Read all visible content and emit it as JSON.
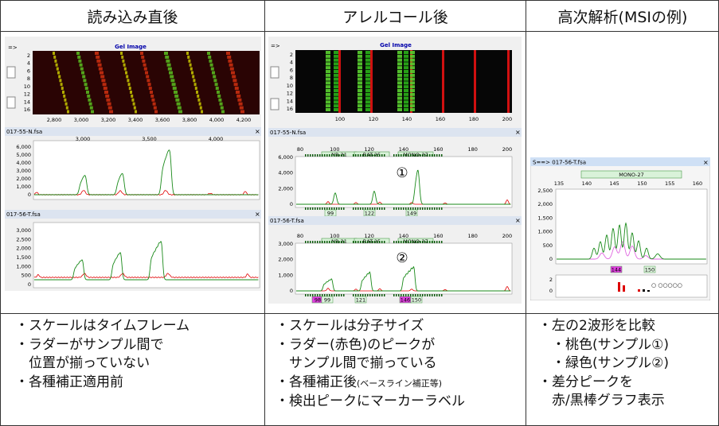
{
  "columns": [
    {
      "title": "読み込み直後",
      "notes": [
        "・スケールはタイムフレーム",
        "・ラダーがサンプル間で",
        "　位置が揃っていない",
        "・各種補正適用前"
      ]
    },
    {
      "title": "アレルコール後",
      "notes": [
        "・スケールは分子サイズ",
        "・ラダー(赤色)のピークが",
        "　サンプル間で揃っている",
        "・各種補正後",
        "・検出ピークにマーカーラベル"
      ],
      "note_small": "(ベースライン補正等)"
    },
    {
      "title": "高次解析(MSIの例)",
      "notes": [
        "・左の2波形を比較",
        "　・桃色(サンプル①)",
        "　・緑色(サンプル②)",
        "・差分ピークを",
        "　赤/黒棒グラフ表示"
      ]
    }
  ],
  "panel1": {
    "gel_title": "Gel Image",
    "arrow": "=>",
    "gel_row_labels": [
      "2",
      "4",
      "6",
      "8",
      "10",
      "12",
      "14",
      "16"
    ],
    "gel_axis": [
      "2,800",
      "3,000",
      "3,200",
      "3,400",
      "3,600",
      "3,800",
      "4,000",
      "4,200"
    ],
    "traces": [
      {
        "name": "017-55-N.fsa",
        "close": "×",
        "top_ticks": [
          "3,000",
          "3,500",
          "4,000"
        ],
        "y_ticks": [
          "6,000",
          "5,000",
          "4,000",
          "3,000",
          "2,000",
          "1,000",
          "0"
        ]
      },
      {
        "name": "017-56-T.fsa",
        "close": "×",
        "y_ticks": [
          "3,000",
          "2,500",
          "2,000",
          "1,500",
          "1,000",
          "500",
          "0"
        ]
      }
    ]
  },
  "panel2": {
    "gel_title": "Gel Image",
    "arrow": "=>",
    "gel_row_labels": [
      "2",
      "4",
      "6",
      "8",
      "10",
      "12",
      "14",
      "16"
    ],
    "gel_axis": [
      "100",
      "120",
      "140",
      "160",
      "180",
      "200"
    ],
    "traces": [
      {
        "name": "017-55-N.fsa",
        "close": "×",
        "x_ticks": [
          "80",
          "100",
          "120",
          "140",
          "160",
          "180",
          "200"
        ],
        "markers": [
          "NR-21",
          "BAT-25",
          "MONO-27"
        ],
        "y_ticks": [
          "6,000",
          "4,000",
          "2,000",
          "0"
        ],
        "circle": "①",
        "peak_labels": [
          "99",
          "122",
          "149"
        ]
      },
      {
        "name": "017-56-T.fsa",
        "close": "×",
        "x_ticks": [
          "80",
          "100",
          "120",
          "140",
          "160",
          "180",
          "200"
        ],
        "markers": [
          "NR-21",
          "BAT-25",
          "MONO-27"
        ],
        "y_ticks": [
          "3,000",
          "2,000",
          "1,000",
          "0"
        ],
        "circle": "②",
        "peak_labels": [
          "98",
          "99",
          "121",
          "146",
          "150"
        ]
      }
    ]
  },
  "panel3": {
    "title": "S==> 017-56-T.fsa",
    "close": "×",
    "marker": "MONO-27",
    "x_ticks": [
      "135",
      "140",
      "145",
      "150",
      "155",
      "160"
    ],
    "y_ticks": [
      "2,500",
      "2,000",
      "1,500",
      "1,000",
      "500",
      "0"
    ],
    "peak_labels": [
      "144",
      "150"
    ],
    "bar_y_ticks": [
      "2",
      "0"
    ],
    "circles": "○ ○○○○○",
    "colors": {
      "pink": "#e066e0",
      "green": "#1a8a1a",
      "red": "#dd0000",
      "black": "#000000"
    }
  }
}
